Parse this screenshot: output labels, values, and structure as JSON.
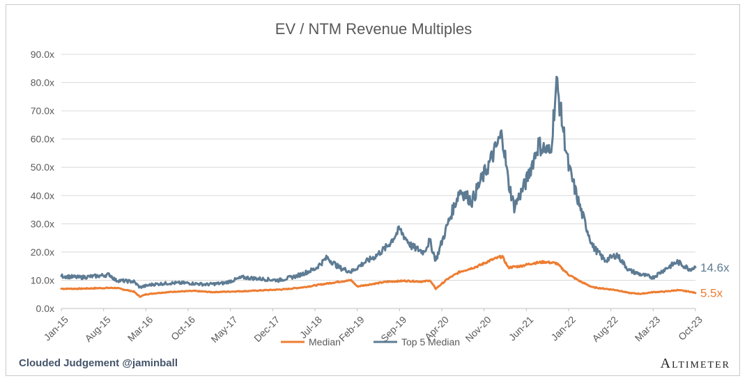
{
  "footer": {
    "credit": "Clouded Judgement @jaminball",
    "brand": "Altimeter"
  },
  "colors": {
    "median": "#ed7d31",
    "top5": "#5d7b93",
    "grid": "#d9d9d9",
    "text": "#595959"
  },
  "chart_data": {
    "type": "line",
    "title": "EV / NTM Revenue Multiples",
    "xlabel": "",
    "ylabel": "",
    "ylim": [
      0,
      90
    ],
    "y_ticks": [
      "0.0x",
      "10.0x",
      "20.0x",
      "30.0x",
      "40.0x",
      "50.0x",
      "60.0x",
      "70.0x",
      "80.0x",
      "90.0x"
    ],
    "x_range": [
      "2015-01",
      "2023-10"
    ],
    "x_tick_labels": [
      "Jan-15",
      "Aug-15",
      "Mar-16",
      "Oct-16",
      "May-17",
      "Dec-17",
      "Jul-18",
      "Feb-19",
      "Sep-19",
      "Apr-20",
      "Nov-20",
      "Jun-21",
      "Jan-22",
      "Aug-22",
      "Mar-23",
      "Oct-23"
    ],
    "grid": true,
    "legend_position": "bottom",
    "series": [
      {
        "name": "Median",
        "color": "#ed7d31",
        "end_label": "5.5x",
        "points": [
          [
            "2015-01",
            7.0
          ],
          [
            "2015-04",
            7.0
          ],
          [
            "2015-07",
            7.2
          ],
          [
            "2015-10",
            7.3
          ],
          [
            "2016-01",
            6.0
          ],
          [
            "2016-02",
            4.2
          ],
          [
            "2016-03",
            5.0
          ],
          [
            "2016-05",
            5.5
          ],
          [
            "2016-08",
            6.0
          ],
          [
            "2016-11",
            6.2
          ],
          [
            "2017-02",
            5.8
          ],
          [
            "2017-05",
            6.0
          ],
          [
            "2017-08",
            6.2
          ],
          [
            "2017-11",
            6.5
          ],
          [
            "2018-02",
            6.8
          ],
          [
            "2018-05",
            7.5
          ],
          [
            "2018-08",
            8.5
          ],
          [
            "2018-11",
            9.5
          ],
          [
            "2019-01",
            10.0
          ],
          [
            "2019-02",
            7.8
          ],
          [
            "2019-04",
            8.5
          ],
          [
            "2019-07",
            9.5
          ],
          [
            "2019-10",
            9.8
          ],
          [
            "2020-01",
            9.5
          ],
          [
            "2020-02",
            10.0
          ],
          [
            "2020-03",
            7.0
          ],
          [
            "2020-05",
            10.5
          ],
          [
            "2020-07",
            13.0
          ],
          [
            "2020-10",
            15.0
          ],
          [
            "2020-12",
            17.0
          ],
          [
            "2021-02",
            18.5
          ],
          [
            "2021-03",
            14.5
          ],
          [
            "2021-05",
            15.0
          ],
          [
            "2021-07",
            16.0
          ],
          [
            "2021-09",
            16.5
          ],
          [
            "2021-11",
            16.0
          ],
          [
            "2022-01",
            12.0
          ],
          [
            "2022-03",
            9.5
          ],
          [
            "2022-05",
            7.5
          ],
          [
            "2022-07",
            7.0
          ],
          [
            "2022-09",
            6.5
          ],
          [
            "2022-11",
            5.5
          ],
          [
            "2023-01",
            5.2
          ],
          [
            "2023-03",
            5.8
          ],
          [
            "2023-05",
            6.0
          ],
          [
            "2023-07",
            6.5
          ],
          [
            "2023-09",
            6.0
          ],
          [
            "2023-10",
            5.5
          ]
        ]
      },
      {
        "name": "Top 5 Median",
        "color": "#5d7b93",
        "end_label": "14.6x",
        "points": [
          [
            "2015-01",
            11.5
          ],
          [
            "2015-04",
            11.0
          ],
          [
            "2015-07",
            11.5
          ],
          [
            "2015-09",
            12.0
          ],
          [
            "2015-10",
            10.0
          ],
          [
            "2016-01",
            9.5
          ],
          [
            "2016-02",
            7.5
          ],
          [
            "2016-04",
            8.5
          ],
          [
            "2016-07",
            9.0
          ],
          [
            "2016-10",
            9.0
          ],
          [
            "2017-01",
            8.5
          ],
          [
            "2017-04",
            9.0
          ],
          [
            "2017-07",
            11.0
          ],
          [
            "2017-10",
            10.5
          ],
          [
            "2018-01",
            10.0
          ],
          [
            "2018-04",
            11.5
          ],
          [
            "2018-07",
            14.0
          ],
          [
            "2018-09",
            18.0
          ],
          [
            "2018-11",
            14.5
          ],
          [
            "2019-01",
            13.0
          ],
          [
            "2019-03",
            16.0
          ],
          [
            "2019-05",
            18.5
          ],
          [
            "2019-07",
            22.0
          ],
          [
            "2019-09",
            28.0
          ],
          [
            "2019-11",
            22.0
          ],
          [
            "2020-01",
            20.0
          ],
          [
            "2020-02",
            24.0
          ],
          [
            "2020-03",
            17.0
          ],
          [
            "2020-05",
            30.0
          ],
          [
            "2020-07",
            42.0
          ],
          [
            "2020-09",
            38.0
          ],
          [
            "2020-10",
            43.0
          ],
          [
            "2020-12",
            52.0
          ],
          [
            "2021-02",
            62.0
          ],
          [
            "2021-03",
            45.0
          ],
          [
            "2021-04",
            36.0
          ],
          [
            "2021-06",
            45.0
          ],
          [
            "2021-08",
            58.0
          ],
          [
            "2021-10",
            55.0
          ],
          [
            "2021-11",
            80.0
          ],
          [
            "2022-01",
            50.0
          ],
          [
            "2022-03",
            35.0
          ],
          [
            "2022-05",
            22.0
          ],
          [
            "2022-07",
            17.0
          ],
          [
            "2022-09",
            19.0
          ],
          [
            "2022-11",
            13.5
          ],
          [
            "2023-01",
            12.0
          ],
          [
            "2023-03",
            11.0
          ],
          [
            "2023-05",
            14.0
          ],
          [
            "2023-07",
            16.5
          ],
          [
            "2023-09",
            14.0
          ],
          [
            "2023-10",
            14.6
          ]
        ]
      }
    ]
  }
}
